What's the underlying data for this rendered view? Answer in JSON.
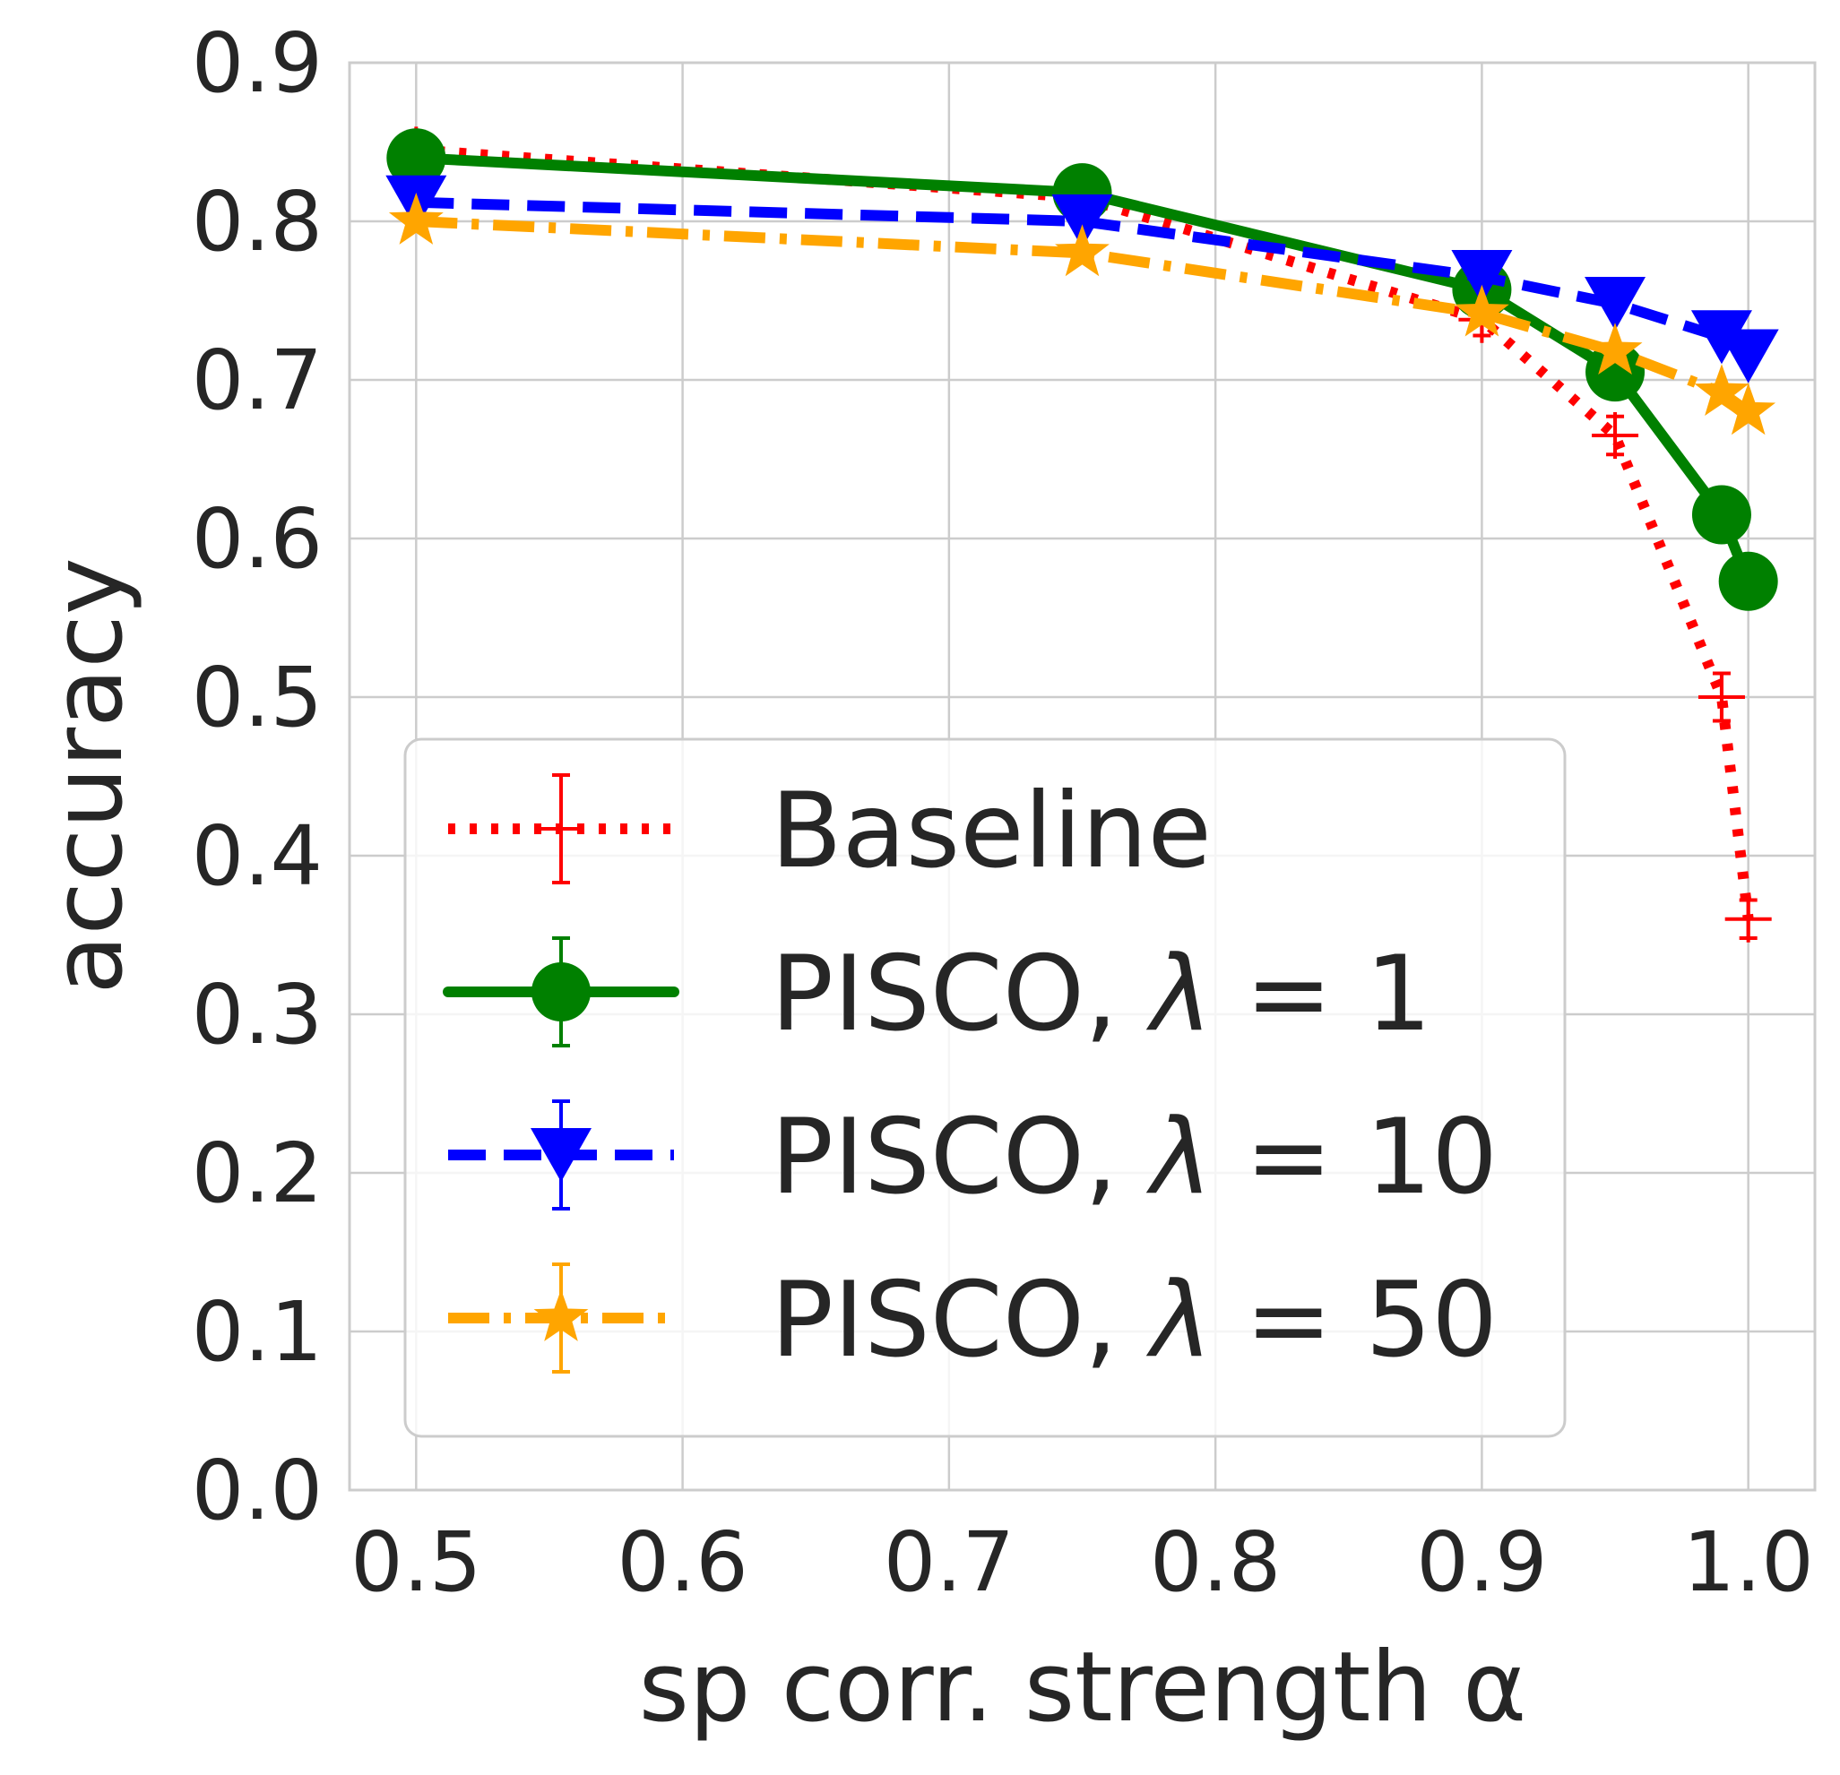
{
  "chart_data": {
    "type": "line",
    "xlabel": "sp corr. strength α",
    "ylabel": "accuracy",
    "xlim": [
      0.475,
      1.025
    ],
    "ylim": [
      0.0,
      0.9
    ],
    "grid": true,
    "x_ticks": [
      0.5,
      0.6,
      0.7,
      0.8,
      0.9,
      1.0
    ],
    "x_tick_labels": [
      "0.5",
      "0.6",
      "0.7",
      "0.8",
      "0.9",
      "1.0"
    ],
    "y_ticks": [
      0.0,
      0.1,
      0.2,
      0.3,
      0.4,
      0.5,
      0.6,
      0.7,
      0.8,
      0.9
    ],
    "y_tick_labels": [
      "0.0",
      "0.1",
      "0.2",
      "0.3",
      "0.4",
      "0.5",
      "0.6",
      "0.7",
      "0.8",
      "0.9"
    ],
    "x": [
      0.5,
      0.75,
      0.9,
      0.95,
      0.99,
      1.0
    ],
    "legend_position": "lower-left",
    "series": [
      {
        "name": "Baseline",
        "label_parts": [
          "Baseline"
        ],
        "color": "#ff0000",
        "linestyle": "dotted",
        "marker": "plus",
        "values": [
          0.845,
          0.815,
          0.738,
          0.665,
          0.5,
          0.36
        ],
        "errors": [
          0.01,
          0.005,
          0.01,
          0.012,
          0.015,
          0.012
        ]
      },
      {
        "name": "PISCO, λ = 1",
        "label_parts": [
          "PISCO, ",
          "λ",
          " = 1"
        ],
        "color": "#008000",
        "linestyle": "solid",
        "marker": "circle",
        "values": [
          0.84,
          0.818,
          0.757,
          0.705,
          0.615,
          0.573
        ],
        "errors": [
          0.005,
          0.005,
          0.005,
          0.005,
          0.005,
          0.005
        ]
      },
      {
        "name": "PISCO, λ = 10",
        "label_parts": [
          "PISCO, ",
          "λ",
          " = 10"
        ],
        "color": "#0000ff",
        "linestyle": "dashed",
        "marker": "triangle-down",
        "values": [
          0.812,
          0.8,
          0.765,
          0.748,
          0.727,
          0.715
        ],
        "errors": [
          0.004,
          0.004,
          0.004,
          0.004,
          0.004,
          0.004
        ]
      },
      {
        "name": "PISCO, λ = 50",
        "label_parts": [
          "PISCO, ",
          "λ",
          " = 50"
        ],
        "color": "#ffa500",
        "linestyle": "dashdot",
        "marker": "star",
        "values": [
          0.8,
          0.78,
          0.742,
          0.718,
          0.692,
          0.68
        ],
        "errors": [
          0.004,
          0.004,
          0.004,
          0.004,
          0.004,
          0.004
        ]
      }
    ]
  }
}
